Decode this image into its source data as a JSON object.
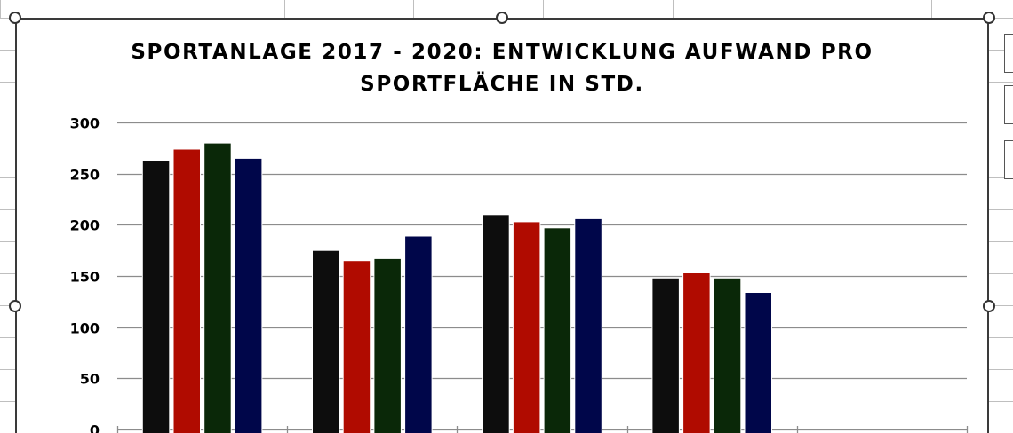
{
  "chart_data": {
    "type": "bar",
    "title": "SPORTANLAGE 2017 - 2020: ENTWICKLUNG AUFWAND PRO\nSPORTFLÄCHE IN STD.",
    "xlabel": "",
    "ylabel": "",
    "ylim": [
      0,
      300
    ],
    "yticks": [
      "300",
      "250",
      "200",
      "150",
      "100",
      "50",
      "0"
    ],
    "grid": true,
    "categories": [
      "",
      "",
      "",
      "",
      ""
    ],
    "series": [
      {
        "color": "#0d0d0d",
        "values": [
          263,
          175,
          210,
          148,
          null
        ]
      },
      {
        "color": "#b00b00",
        "values": [
          274,
          165,
          203,
          153,
          null
        ]
      },
      {
        "color": "#0a2808",
        "values": [
          280,
          167,
          197,
          148,
          null
        ]
      },
      {
        "color": "#00064a",
        "values": [
          265,
          189,
          206,
          134,
          null
        ]
      }
    ]
  }
}
